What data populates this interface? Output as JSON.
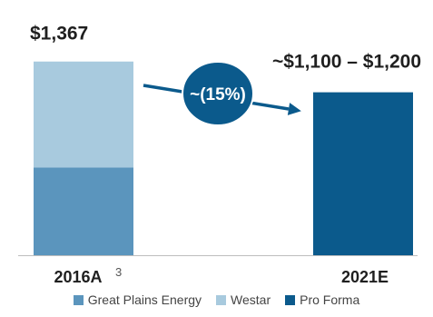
{
  "chart_data": {
    "type": "bar",
    "stacked": true,
    "categories": [
      "2016A",
      "2021E"
    ],
    "category_footnotes": [
      "3",
      ""
    ],
    "series": [
      {
        "name": "Great Plains Energy",
        "color": "#5b95bd",
        "values": [
          620,
          0
        ]
      },
      {
        "name": "Westar",
        "color": "#a8cade",
        "values": [
          747,
          0
        ]
      },
      {
        "name": "Pro Forma",
        "color": "#0b5a8c",
        "values": [
          0,
          1150
        ]
      }
    ],
    "totals": [
      "$1,367",
      "~$1,100 – $1,200"
    ],
    "annotation": {
      "text": "~(15%)",
      "color": "#0b5a8c"
    },
    "ylim": [
      0,
      1500
    ],
    "grid": false,
    "legend_position": "bottom"
  }
}
